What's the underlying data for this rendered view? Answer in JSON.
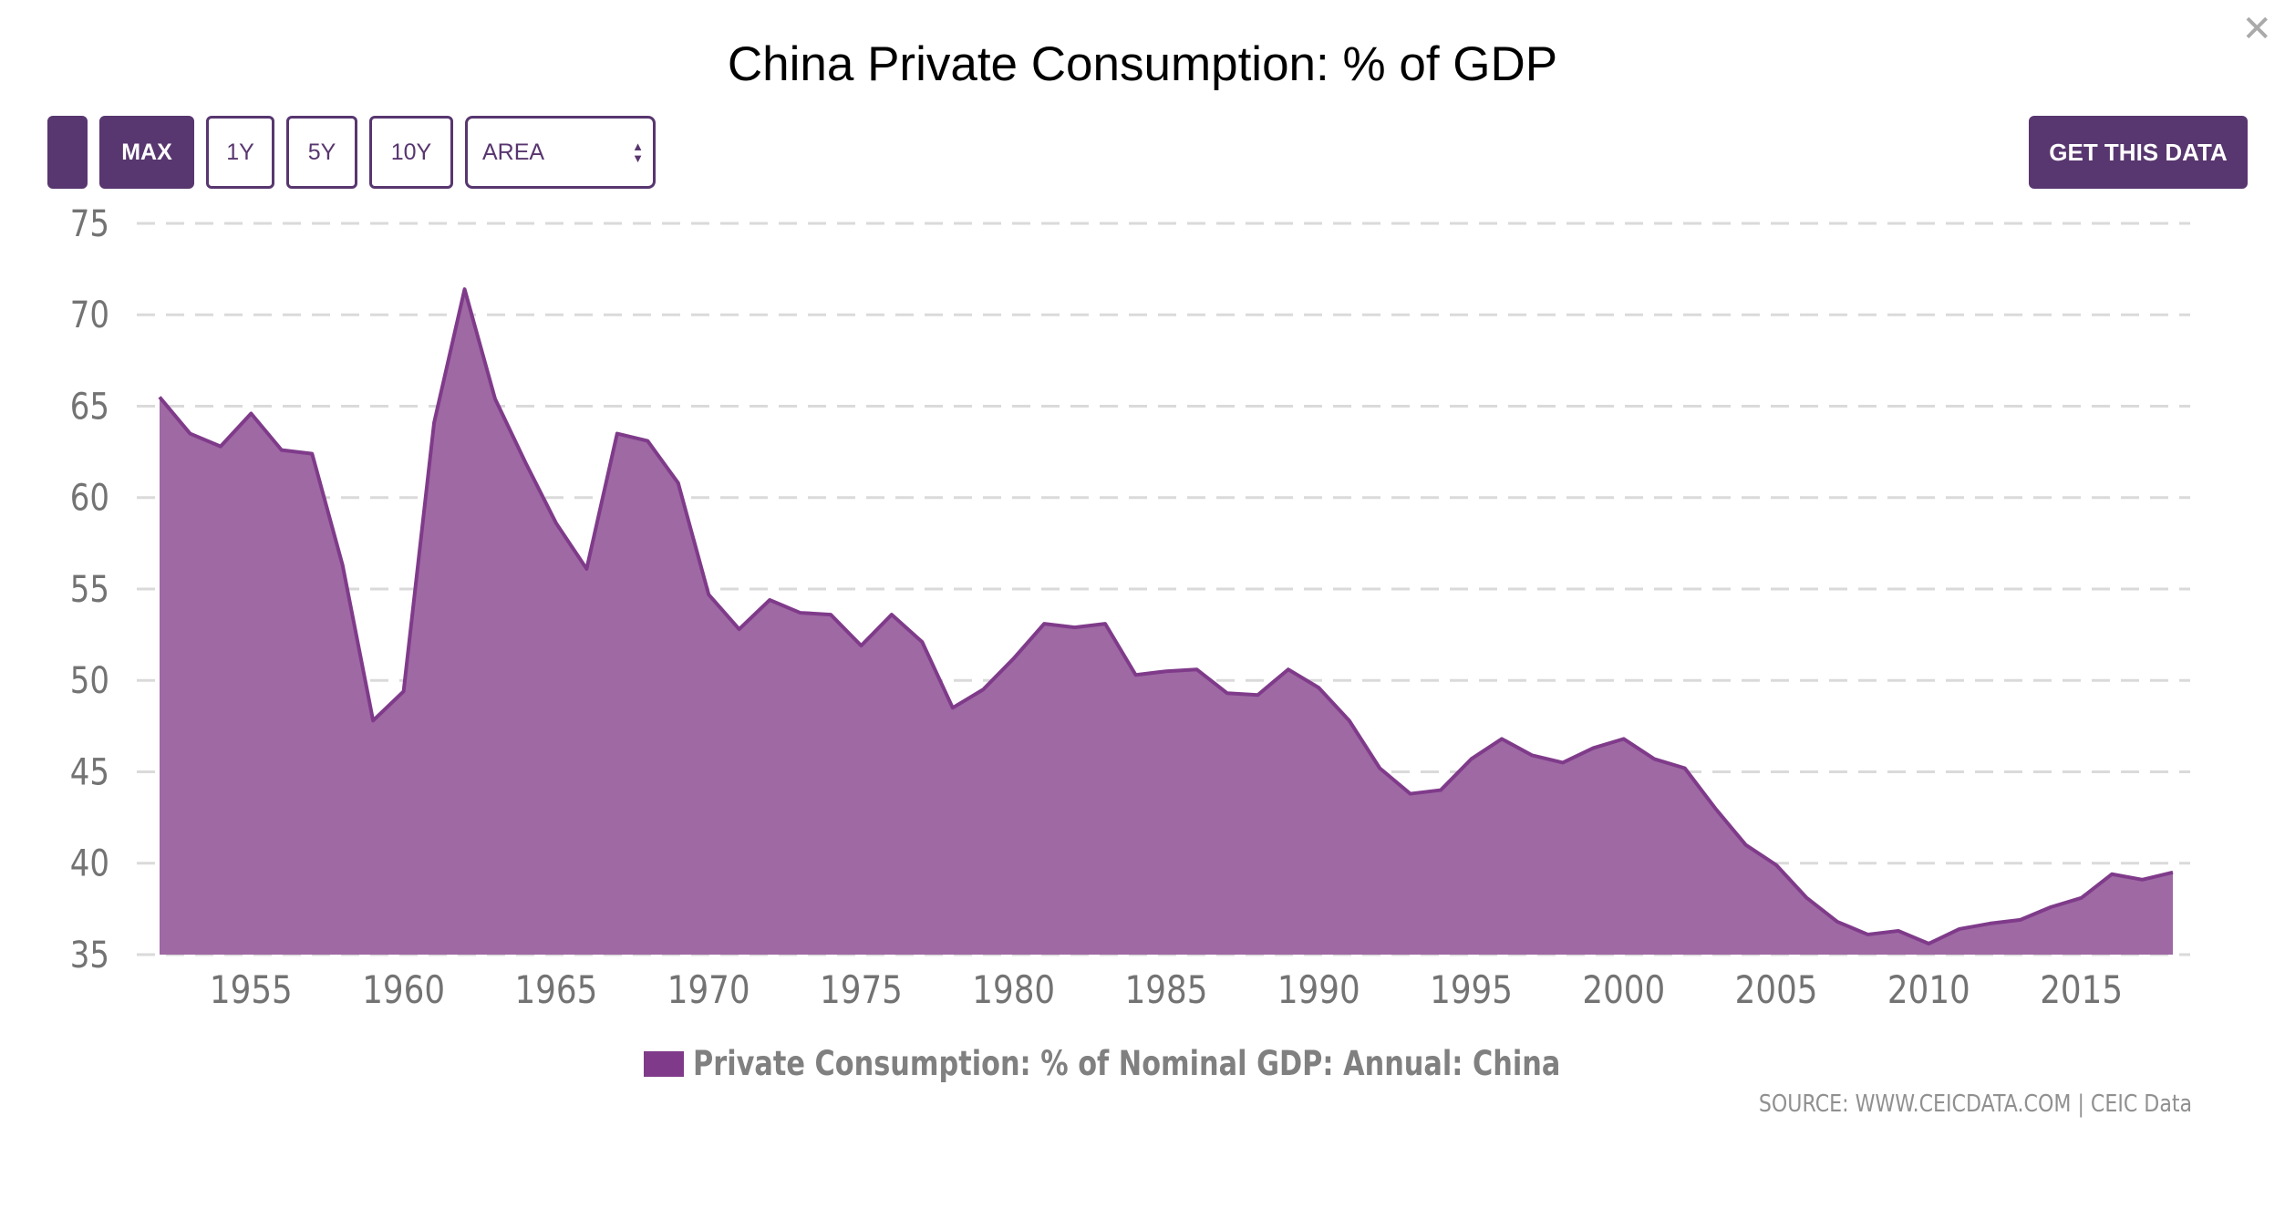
{
  "window": {
    "close_icon": "close-icon"
  },
  "toolbar": {
    "buttons": [
      {
        "id": "blank",
        "label": ""
      },
      {
        "id": "max",
        "label": "MAX"
      },
      {
        "id": "1y",
        "label": "1Y"
      },
      {
        "id": "5y",
        "label": "5Y"
      },
      {
        "id": "10y",
        "label": "10Y"
      }
    ],
    "chart_type_select": {
      "value": "AREA"
    },
    "get_data_label": "GET THIS DATA"
  },
  "colors": {
    "accent": "#58366f",
    "series_line": "#7f3b8a",
    "series_fill": "#9f69a4",
    "grid": "#dadada",
    "axis_text": "#737373"
  },
  "chart_data": {
    "type": "area",
    "title": "China Private Consumption: % of GDP",
    "xlabel": "",
    "ylabel": "",
    "ylim": [
      35,
      75
    ],
    "yticks": [
      35,
      40,
      45,
      50,
      55,
      60,
      65,
      70,
      75
    ],
    "xticks": [
      1955,
      1960,
      1965,
      1970,
      1975,
      1980,
      1985,
      1990,
      1995,
      2000,
      2005,
      2010,
      2015
    ],
    "xlim": [
      1952,
      2018
    ],
    "grid": true,
    "legend_position": "bottom-center",
    "series": [
      {
        "name": "Private Consumption: % of Nominal GDP: Annual: China",
        "x": [
          1952,
          1953,
          1954,
          1955,
          1956,
          1957,
          1958,
          1959,
          1960,
          1961,
          1962,
          1963,
          1964,
          1965,
          1966,
          1967,
          1968,
          1969,
          1970,
          1971,
          1972,
          1973,
          1974,
          1975,
          1976,
          1977,
          1978,
          1979,
          1980,
          1981,
          1982,
          1983,
          1984,
          1985,
          1986,
          1987,
          1988,
          1989,
          1990,
          1991,
          1992,
          1993,
          1994,
          1995,
          1996,
          1997,
          1998,
          1999,
          2000,
          2001,
          2002,
          2003,
          2004,
          2005,
          2006,
          2007,
          2008,
          2009,
          2010,
          2011,
          2012,
          2013,
          2014,
          2015,
          2016,
          2017,
          2018
        ],
        "values": [
          65.5,
          63.5,
          62.8,
          64.6,
          62.6,
          62.4,
          56.3,
          47.8,
          49.4,
          64.1,
          71.4,
          65.4,
          61.9,
          58.6,
          56.1,
          63.5,
          63.1,
          60.8,
          54.7,
          52.8,
          54.4,
          53.7,
          53.6,
          51.9,
          53.6,
          52.1,
          48.5,
          49.5,
          51.2,
          53.1,
          52.9,
          53.1,
          50.3,
          50.5,
          50.6,
          49.3,
          49.2,
          50.6,
          49.6,
          47.8,
          45.2,
          43.8,
          44.0,
          45.7,
          46.8,
          45.9,
          45.5,
          46.3,
          46.8,
          45.7,
          45.2,
          43.0,
          41.0,
          39.9,
          38.1,
          36.8,
          36.1,
          36.3,
          35.6,
          36.4,
          36.7,
          36.9,
          37.6,
          38.1,
          39.4,
          39.1,
          39.5
        ]
      }
    ],
    "source": "SOURCE: WWW.CEICDATA.COM | CEIC Data"
  }
}
